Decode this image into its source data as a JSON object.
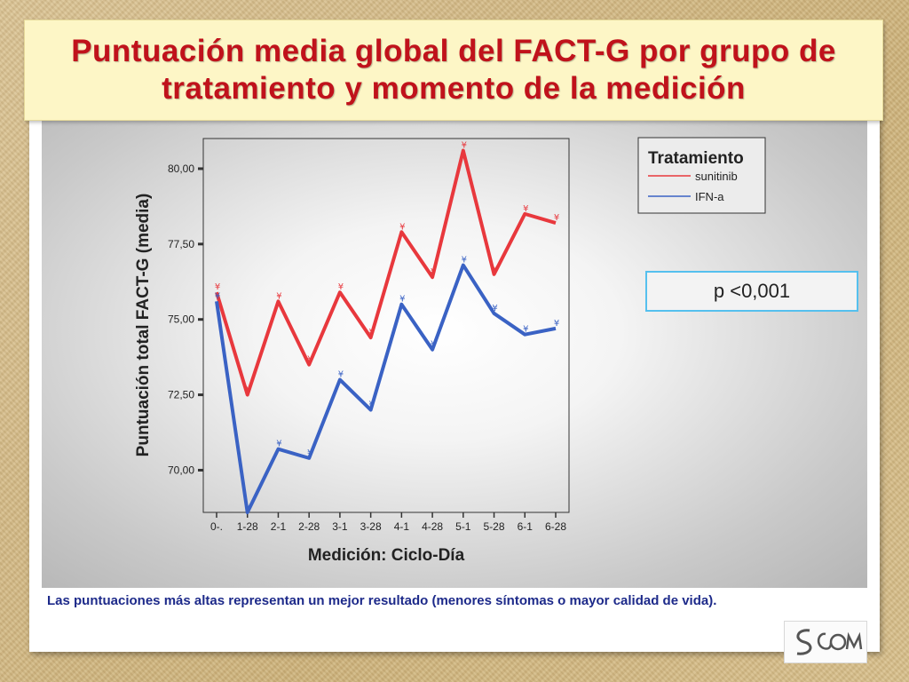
{
  "title": "Puntuación media global del FACT-G por grupo de tratamiento y momento de la medición",
  "p_value": "p <0,001",
  "footnote": "Las puntuaciones más altas representan un mejor resultado (menores síntomas o mayor calidad de vida).",
  "logo": {
    "name": "SEOM logo",
    "text": "SEOM"
  },
  "colors": {
    "title": "#c0121b",
    "footnote": "#1d2a8a",
    "sunitinib": "#e8383d",
    "ifn": "#3a62c4",
    "pvalue_border": "#55c0ee"
  },
  "chart_data": {
    "type": "line",
    "xlabel": "Medición: Ciclo-Día",
    "ylabel": "Puntuación total FACT-G (media)",
    "categories": [
      "0-.",
      "1-28",
      "2-1",
      "2-28",
      "3-1",
      "3-28",
      "4-1",
      "4-28",
      "5-1",
      "5-28",
      "6-1",
      "6-28"
    ],
    "yticks": [
      "70,00",
      "72,50",
      "75,00",
      "77,50",
      "80,00"
    ],
    "ytick_values": [
      70,
      72.5,
      75,
      77.5,
      80
    ],
    "ylim": [
      68.6,
      81.0
    ],
    "legend_title": "Tratamiento",
    "legend_position": "top-right",
    "grid": false,
    "series": [
      {
        "name": "sunitinib",
        "color": "#e8383d",
        "values": [
          75.9,
          72.5,
          75.6,
          73.5,
          75.9,
          74.4,
          77.9,
          76.4,
          80.6,
          76.5,
          78.5,
          78.2
        ]
      },
      {
        "name": "IFN-a",
        "color": "#3a62c4",
        "values": [
          75.6,
          68.6,
          70.7,
          70.4,
          73.0,
          72.0,
          75.5,
          74.0,
          76.8,
          75.2,
          74.5,
          74.7
        ]
      }
    ]
  }
}
